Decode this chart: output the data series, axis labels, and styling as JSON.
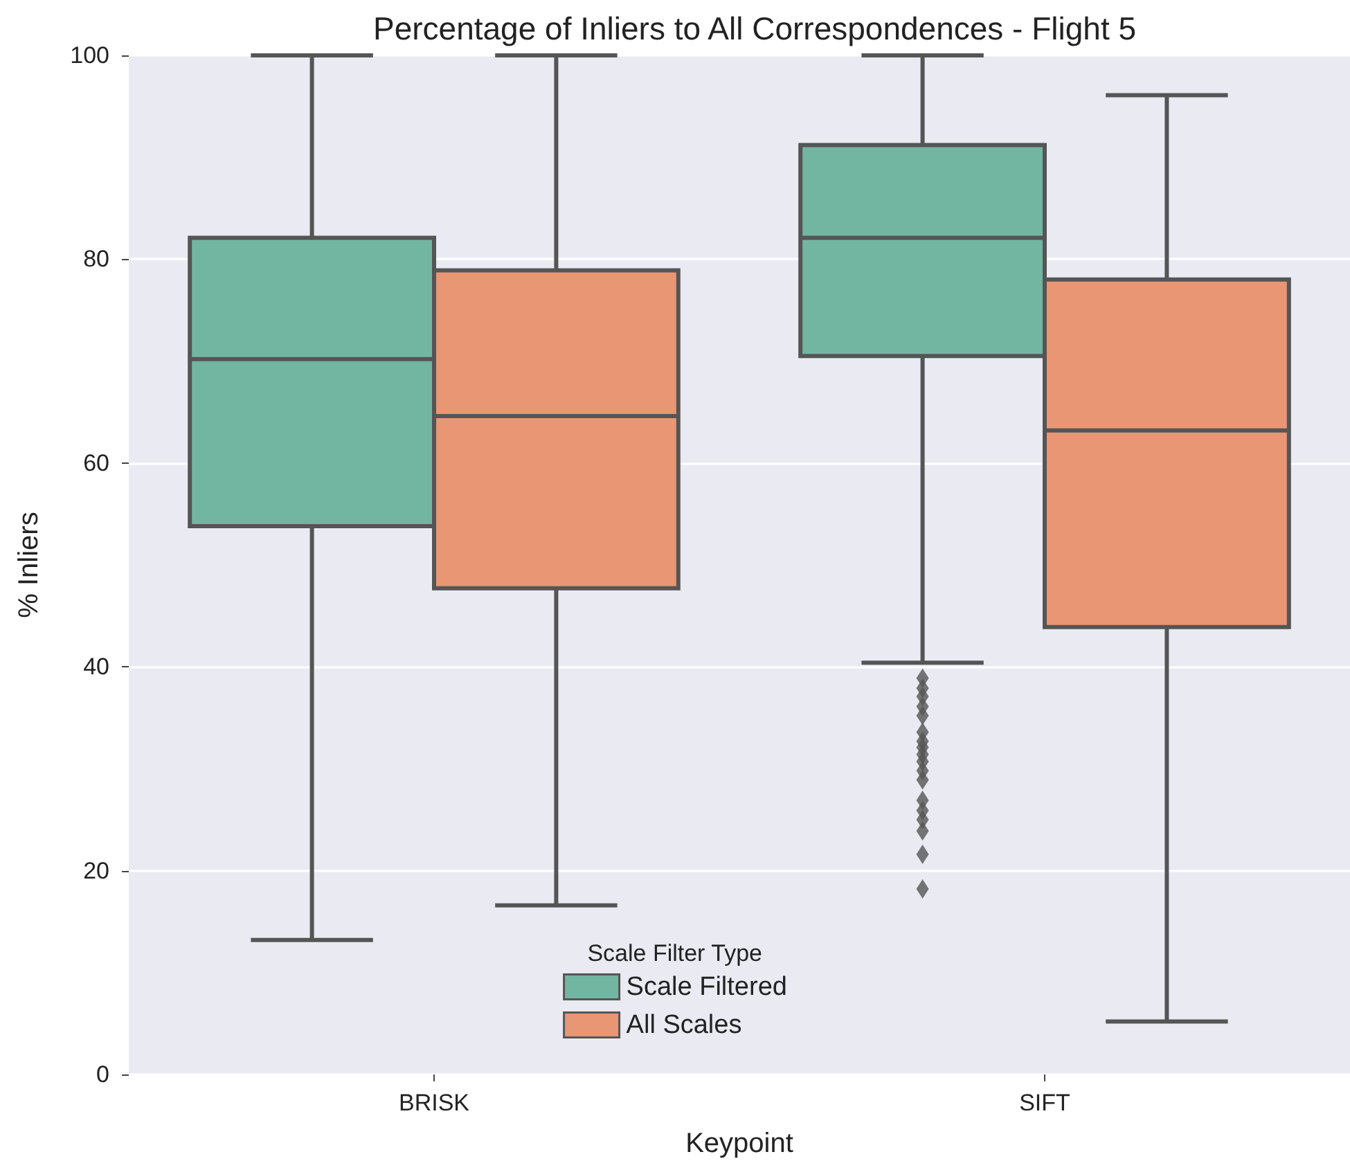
{
  "chart_data": {
    "type": "box",
    "title": "Percentage of Inliers to All Correspondences - Flight 5",
    "xlabel": "Keypoint",
    "ylabel": "% Inliers",
    "legend_title": "Scale Filter Type",
    "categories": [
      "BRISK",
      "SIFT"
    ],
    "series": [
      {
        "name": "Scale Filtered",
        "color": "#72b6a1",
        "boxes": [
          {
            "low": 13.2,
            "q1": 53.8,
            "median": 70.2,
            "q3": 82.1,
            "high": 100
          },
          {
            "low": 40.4,
            "q1": 70.5,
            "median": 82.1,
            "q3": 91.2,
            "high": 100,
            "outliers": [
              38.9,
              37.9,
              37.1,
              36.1,
              35.2,
              33.6,
              32.7,
              32.1,
              31.4,
              30.7,
              29.8,
              28.9,
              26.9,
              25.9,
              25.0,
              23.9,
              21.6,
              18.2
            ]
          }
        ]
      },
      {
        "name": "All Scales",
        "color": "#e99675",
        "boxes": [
          {
            "low": 16.6,
            "q1": 47.7,
            "median": 64.6,
            "q3": 78.9,
            "high": 100
          },
          {
            "low": 5.2,
            "q1": 43.9,
            "median": 63.2,
            "q3": 78.0,
            "high": 96.1
          }
        ]
      }
    ],
    "ylim": [
      0,
      100
    ],
    "yticks": [
      0,
      20,
      40,
      60,
      80,
      100
    ],
    "grid": "y",
    "legend": "bottom",
    "marker": "diamond"
  }
}
